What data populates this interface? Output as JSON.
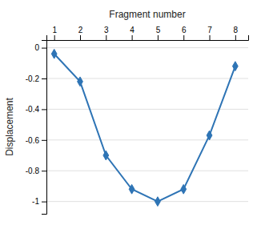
{
  "chart_data": {
    "type": "line",
    "x": [
      1,
      2,
      3,
      4,
      5,
      6,
      7,
      8
    ],
    "y": [
      -0.04,
      -0.22,
      -0.7,
      -0.92,
      -1.0,
      -0.92,
      -0.57,
      -0.12
    ],
    "color": "#2E74B5",
    "marker": "diamond",
    "xlabel": "Fragment number",
    "ylabel": "Displacement",
    "xlim": [
      0.7,
      8.5
    ],
    "ylim": [
      -1.08,
      0.05
    ],
    "xticks": [
      1,
      2,
      3,
      4,
      5,
      6,
      7,
      8
    ],
    "yticks": [
      0,
      -0.2,
      -0.4,
      -0.6,
      -0.8,
      -1
    ],
    "grid": true
  }
}
